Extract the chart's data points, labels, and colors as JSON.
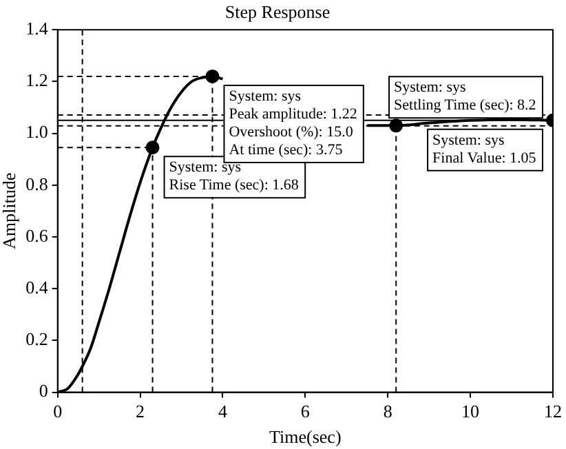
{
  "chart_data": {
    "type": "line",
    "title": "Step Response",
    "xlabel": "Time(sec)",
    "ylabel": "Amplitude",
    "xlim": [
      0,
      12
    ],
    "xticks": [
      0,
      2,
      4,
      6,
      8,
      10,
      12
    ],
    "ylim": [
      0,
      1.4
    ],
    "yticks": [
      0,
      0.2,
      0.4,
      0.6,
      0.8,
      {
        "value": 1,
        "label": "1.0"
      },
      1.2,
      1.4
    ],
    "grid": false,
    "legend": false,
    "series": [
      {
        "marker": "none",
        "color": "#000000",
        "x": [
          0,
          0.25,
          0.5,
          0.6,
          0.8,
          1,
          1.25,
          1.5,
          1.75,
          2,
          2.3,
          2.5,
          2.75,
          3,
          3.25,
          3.5,
          3.75,
          4,
          4.5,
          5,
          5.5,
          6,
          6.5,
          7,
          7.5,
          8,
          8.2,
          9,
          10,
          11,
          12
        ],
        "values": [
          0,
          0.015,
          0.07,
          0.1,
          0.17,
          0.27,
          0.4,
          0.54,
          0.68,
          0.81,
          0.945,
          1.02,
          1.1,
          1.16,
          1.2,
          1.215,
          1.22,
          1.21,
          null,
          null,
          null,
          null,
          null,
          null,
          1.03,
          1.03,
          1.03,
          1.04,
          1.05,
          1.053,
          1.05
        ]
      },
      {
        "type": "scatter",
        "marker": "circle",
        "color": "#000000",
        "x": [
          2.3,
          3.75,
          8.2,
          12
        ],
        "values": [
          0.945,
          1.22,
          1.03,
          1.05
        ]
      }
    ],
    "ref_lines": [
      {
        "axis": "x",
        "value": 0.6,
        "line_style": "dashed",
        "color": "#000000"
      },
      {
        "axis": "x",
        "value": 2.3,
        "line_style": "dashed",
        "color": "#000000"
      },
      {
        "axis": "x",
        "value": 3.75,
        "line_style": "dashed",
        "color": "#000000"
      },
      {
        "axis": "x",
        "value": 8.2,
        "line_style": "dashed",
        "color": "#000000"
      },
      {
        "axis": "y",
        "value": 0.945,
        "line_style": "dashed",
        "color": "#000000"
      },
      {
        "axis": "y",
        "value": 1.22,
        "line_style": "dashed",
        "color": "#000000"
      },
      {
        "axis": "y",
        "value": 1.071,
        "line_style": "dashed",
        "color": "#000000"
      },
      {
        "axis": "y",
        "value": 1.029,
        "line_style": "dashed",
        "color": "#000000"
      },
      {
        "axis": "y",
        "value": 1.05,
        "line_style": "solid",
        "color": "#000000"
      }
    ],
    "annotations": [
      {
        "text": "System: sys\nRise Time (sec): 1.68",
        "x": 2.3,
        "y": 0.945
      },
      {
        "text": "System: sys\nPeak amplitude: 1.22\nOvershoot (%): 15.0\nAt time (sec): 3.75",
        "x": 3.75,
        "y": 1.22
      },
      {
        "text": "System: sys\nSettling Time (sec): 8.2",
        "x": 8.2,
        "y": 1.03
      },
      {
        "text": "System: sys\nFinal Value: 1.05",
        "x": 12,
        "y": 1.05
      }
    ]
  }
}
